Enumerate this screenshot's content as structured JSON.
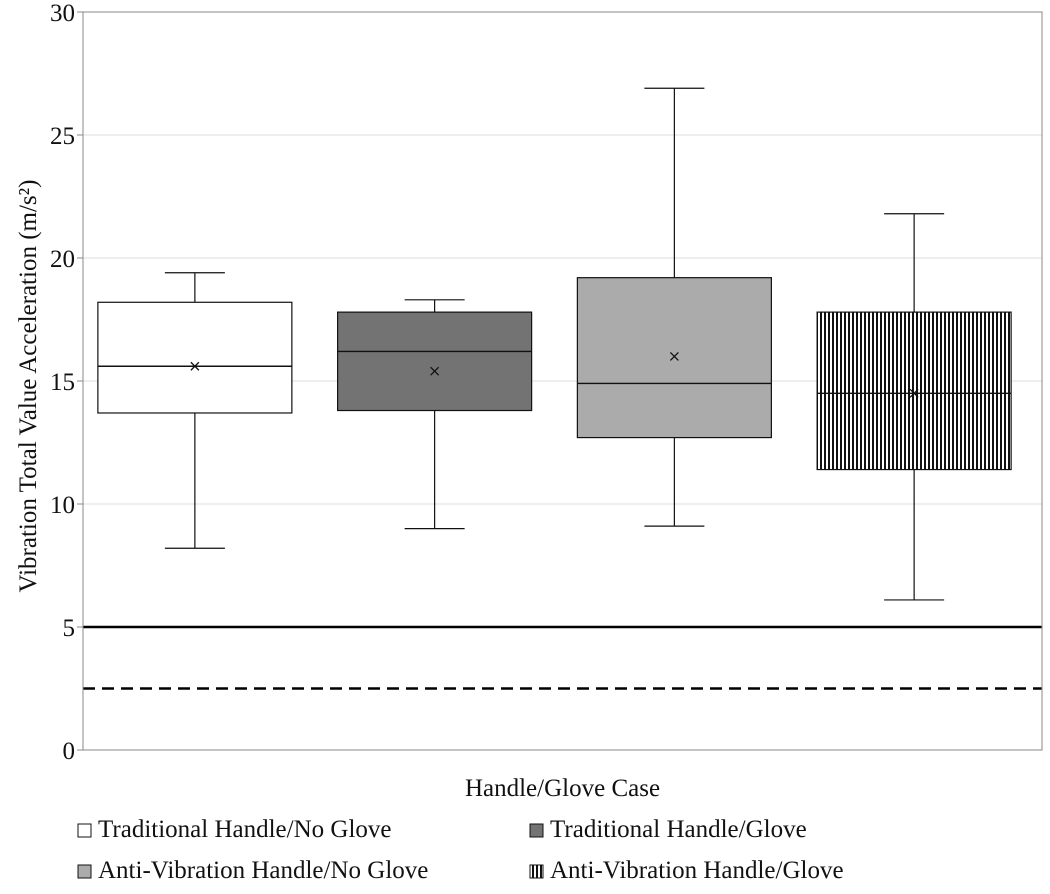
{
  "chart_data": {
    "type": "box",
    "title": "",
    "xlabel": "Handle/Glove Case",
    "ylabel": "Vibration Total Value Acceleration (m/s²)",
    "ylim": [
      0,
      30
    ],
    "yticks": [
      0,
      5,
      10,
      15,
      20,
      25,
      30
    ],
    "ytick_labels": [
      "0",
      "5",
      "10",
      "15",
      "20",
      "25",
      "30"
    ],
    "grid": "horizontal",
    "legend_position": "bottom",
    "series": [
      {
        "name": "Traditional Handle/No Glove",
        "fill": "#ffffff",
        "pattern": "none",
        "min": 8.2,
        "q1": 13.7,
        "median": 15.6,
        "q3": 18.2,
        "max": 19.4,
        "mean": 15.6
      },
      {
        "name": "Traditional Handle/Glove",
        "fill": "#737373",
        "pattern": "none",
        "min": 9.0,
        "q1": 13.8,
        "median": 16.2,
        "q3": 17.8,
        "max": 18.3,
        "mean": 15.4
      },
      {
        "name": "Anti-Vibration Handle/No Glove",
        "fill": "#ababab",
        "pattern": "none",
        "min": 9.1,
        "q1": 12.7,
        "median": 14.9,
        "q3": 19.2,
        "max": 26.9,
        "mean": 16.0
      },
      {
        "name": "Anti-Vibration Handle/Glove",
        "fill": "#ffffff",
        "pattern": "vertical-stripes",
        "min": 6.1,
        "q1": 11.4,
        "median": 14.5,
        "q3": 17.8,
        "max": 21.8,
        "mean": 14.5
      }
    ],
    "reference_lines": [
      {
        "value": 5.0,
        "style": "solid"
      },
      {
        "value": 2.5,
        "style": "dashed"
      }
    ]
  }
}
